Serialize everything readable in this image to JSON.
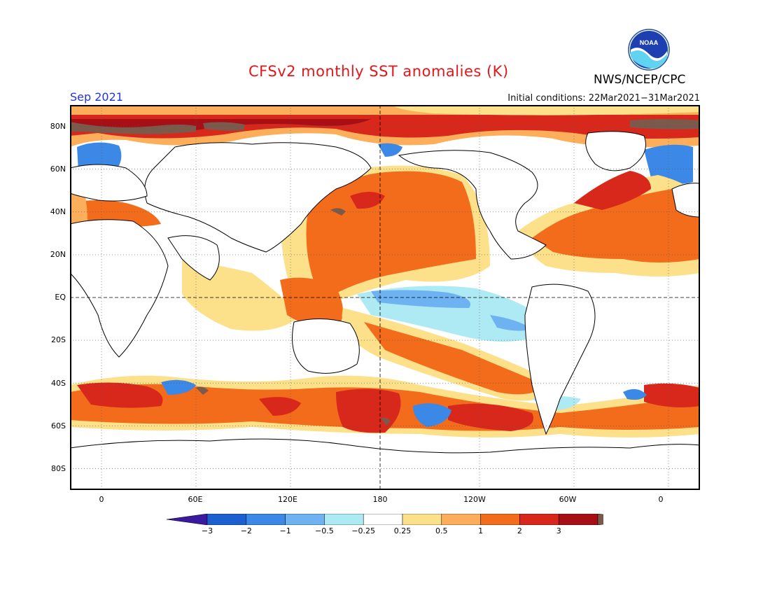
{
  "header": {
    "title": "CFSv2 monthly SST anomalies (K)",
    "agency": "NWS/NCEP/CPC",
    "logo_text": "NOAA",
    "valid_month": "Sep 2021",
    "initial_conditions": "Initial conditions: 22Mar2021−31Mar2021"
  },
  "map": {
    "projection": "equirectangular",
    "lon_range": [
      -20,
      380
    ],
    "lat_range": [
      -90,
      90
    ],
    "grid": "dotted",
    "dashed_lines": [
      "equator",
      "180 meridian"
    ],
    "lat_ticks": [
      "80N",
      "60N",
      "40N",
      "20N",
      "EQ",
      "20S",
      "40S",
      "60S",
      "80S"
    ],
    "lon_ticks": [
      "0",
      "60E",
      "120E",
      "180",
      "120W",
      "60W",
      "0"
    ]
  },
  "colorbar": {
    "labels": [
      "−3",
      "−2",
      "−1",
      "−0.5",
      "−0.25",
      "0.25",
      "0.5",
      "1",
      "2",
      "3"
    ],
    "colors": [
      "#3a1a9e",
      "#1c5fd0",
      "#3c88e6",
      "#6eb2f2",
      "#aeeaf4",
      "#ffffff",
      "#fde08a",
      "#fdae5a",
      "#f26c1c",
      "#d8281c",
      "#a50f15",
      "#7b5a4c"
    ]
  }
}
